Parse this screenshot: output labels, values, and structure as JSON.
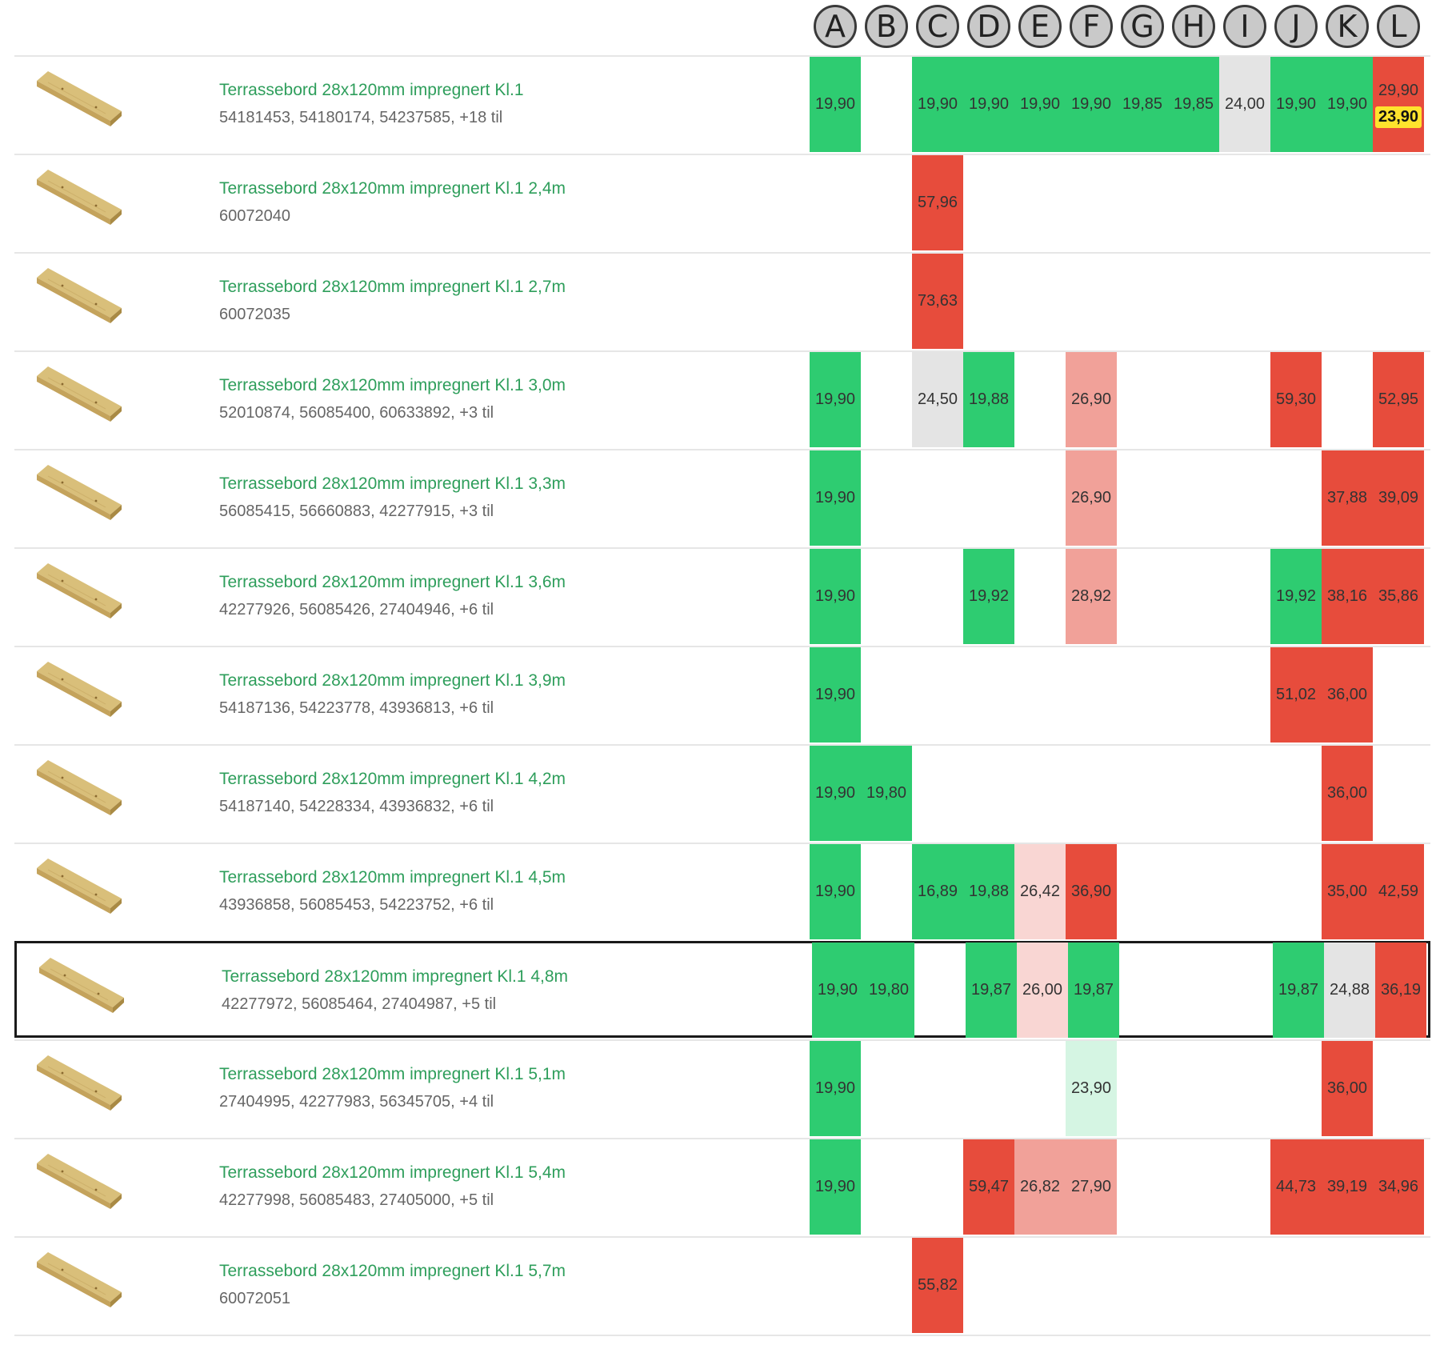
{
  "colors": {
    "green": "#2ecc71",
    "red": "#e74c3c",
    "light_red": "#f1a199",
    "pale_red": "#f9d6d3",
    "gray": "#e4e4e4",
    "light_green": "#d5f5e3",
    "highlight": "#ffe32d",
    "title_text": "#2e9e5b",
    "sku_text": "#666666"
  },
  "columns": [
    "A",
    "B",
    "C",
    "D",
    "E",
    "F",
    "G",
    "H",
    "I",
    "J",
    "K",
    "L"
  ],
  "rows": [
    {
      "title": "Terrassebord 28x120mm impregnert Kl.1",
      "skus": "54181453, 54180174, 54237585, +18 til",
      "selected": false,
      "cells": [
        {
          "col": 0,
          "value": "19,90",
          "status": "green"
        },
        {
          "col": 2,
          "value": "19,90",
          "status": "green"
        },
        {
          "col": 3,
          "value": "19,90",
          "status": "green"
        },
        {
          "col": 4,
          "value": "19,90",
          "status": "green"
        },
        {
          "col": 5,
          "value": "19,90",
          "status": "green"
        },
        {
          "col": 6,
          "value": "19,85",
          "status": "green"
        },
        {
          "col": 7,
          "value": "19,85",
          "status": "green"
        },
        {
          "col": 8,
          "value": "24,00",
          "status": "gray"
        },
        {
          "col": 9,
          "value": "19,90",
          "status": "green"
        },
        {
          "col": 10,
          "value": "19,90",
          "status": "green"
        },
        {
          "col": 11,
          "value": "29,90",
          "sale": "23,90",
          "status": "red"
        }
      ]
    },
    {
      "title": "Terrassebord 28x120mm impregnert Kl.1 2,4m",
      "skus": "60072040",
      "selected": false,
      "cells": [
        {
          "col": 2,
          "value": "57,96",
          "status": "red"
        }
      ]
    },
    {
      "title": "Terrassebord 28x120mm impregnert Kl.1 2,7m",
      "skus": "60072035",
      "selected": false,
      "cells": [
        {
          "col": 2,
          "value": "73,63",
          "status": "red"
        }
      ]
    },
    {
      "title": "Terrassebord 28x120mm impregnert Kl.1 3,0m",
      "skus": "52010874, 56085400, 60633892, +3 til",
      "selected": false,
      "cells": [
        {
          "col": 0,
          "value": "19,90",
          "status": "green"
        },
        {
          "col": 2,
          "value": "24,50",
          "status": "gray"
        },
        {
          "col": 3,
          "value": "19,88",
          "status": "green"
        },
        {
          "col": 5,
          "value": "26,90",
          "status": "light_red"
        },
        {
          "col": 9,
          "value": "59,30",
          "status": "red"
        },
        {
          "col": 11,
          "value": "52,95",
          "status": "red"
        }
      ]
    },
    {
      "title": "Terrassebord 28x120mm impregnert Kl.1 3,3m",
      "skus": "56085415, 56660883, 42277915, +3 til",
      "selected": false,
      "cells": [
        {
          "col": 0,
          "value": "19,90",
          "status": "green"
        },
        {
          "col": 5,
          "value": "26,90",
          "status": "light_red"
        },
        {
          "col": 10,
          "value": "37,88",
          "status": "red"
        },
        {
          "col": 11,
          "value": "39,09",
          "status": "red"
        }
      ]
    },
    {
      "title": "Terrassebord 28x120mm impregnert Kl.1 3,6m",
      "skus": "42277926, 56085426, 27404946, +6 til",
      "selected": false,
      "cells": [
        {
          "col": 0,
          "value": "19,90",
          "status": "green"
        },
        {
          "col": 3,
          "value": "19,92",
          "status": "green"
        },
        {
          "col": 5,
          "value": "28,92",
          "status": "light_red"
        },
        {
          "col": 9,
          "value": "19,92",
          "status": "green"
        },
        {
          "col": 10,
          "value": "38,16",
          "status": "red"
        },
        {
          "col": 11,
          "value": "35,86",
          "status": "red"
        }
      ]
    },
    {
      "title": "Terrassebord 28x120mm impregnert Kl.1 3,9m",
      "skus": "54187136, 54223778, 43936813, +6 til",
      "selected": false,
      "cells": [
        {
          "col": 0,
          "value": "19,90",
          "status": "green"
        },
        {
          "col": 9,
          "value": "51,02",
          "status": "red"
        },
        {
          "col": 10,
          "value": "36,00",
          "status": "red"
        }
      ]
    },
    {
      "title": "Terrassebord 28x120mm impregnert Kl.1 4,2m",
      "skus": "54187140, 54228334, 43936832, +6 til",
      "selected": false,
      "cells": [
        {
          "col": 0,
          "value": "19,90",
          "status": "green"
        },
        {
          "col": 1,
          "value": "19,80",
          "status": "green"
        },
        {
          "col": 10,
          "value": "36,00",
          "status": "red"
        }
      ]
    },
    {
      "title": "Terrassebord 28x120mm impregnert Kl.1 4,5m",
      "skus": "43936858, 56085453, 54223752, +6 til",
      "selected": false,
      "cells": [
        {
          "col": 0,
          "value": "19,90",
          "status": "green"
        },
        {
          "col": 2,
          "value": "16,89",
          "status": "green"
        },
        {
          "col": 3,
          "value": "19,88",
          "status": "green"
        },
        {
          "col": 4,
          "value": "26,42",
          "status": "pale_red"
        },
        {
          "col": 5,
          "value": "36,90",
          "status": "red"
        },
        {
          "col": 10,
          "value": "35,00",
          "status": "red"
        },
        {
          "col": 11,
          "value": "42,59",
          "status": "red"
        }
      ]
    },
    {
      "title": "Terrassebord 28x120mm impregnert Kl.1 4,8m",
      "skus": "42277972, 56085464, 27404987, +5 til",
      "selected": true,
      "cells": [
        {
          "col": 0,
          "value": "19,90",
          "status": "green"
        },
        {
          "col": 1,
          "value": "19,80",
          "status": "green"
        },
        {
          "col": 3,
          "value": "19,87",
          "status": "green"
        },
        {
          "col": 4,
          "value": "26,00",
          "status": "pale_red"
        },
        {
          "col": 5,
          "value": "19,87",
          "status": "green"
        },
        {
          "col": 9,
          "value": "19,87",
          "status": "green"
        },
        {
          "col": 10,
          "value": "24,88",
          "status": "gray"
        },
        {
          "col": 11,
          "value": "36,19",
          "status": "red"
        }
      ]
    },
    {
      "title": "Terrassebord 28x120mm impregnert Kl.1 5,1m",
      "skus": "27404995, 42277983, 56345705, +4 til",
      "selected": false,
      "cells": [
        {
          "col": 0,
          "value": "19,90",
          "status": "green"
        },
        {
          "col": 5,
          "value": "23,90",
          "status": "light_green"
        },
        {
          "col": 10,
          "value": "36,00",
          "status": "red"
        }
      ]
    },
    {
      "title": "Terrassebord 28x120mm impregnert Kl.1 5,4m",
      "skus": "42277998, 56085483, 27405000, +5 til",
      "selected": false,
      "cells": [
        {
          "col": 0,
          "value": "19,90",
          "status": "green"
        },
        {
          "col": 3,
          "value": "59,47",
          "status": "red"
        },
        {
          "col": 4,
          "value": "26,82",
          "status": "light_red"
        },
        {
          "col": 5,
          "value": "27,90",
          "status": "light_red"
        },
        {
          "col": 9,
          "value": "44,73",
          "status": "red"
        },
        {
          "col": 10,
          "value": "39,19",
          "status": "red"
        },
        {
          "col": 11,
          "value": "34,96",
          "status": "red"
        }
      ]
    },
    {
      "title": "Terrassebord 28x120mm impregnert Kl.1 5,7m",
      "skus": "60072051",
      "selected": false,
      "cells": [
        {
          "col": 2,
          "value": "55,82",
          "status": "red"
        }
      ]
    }
  ]
}
